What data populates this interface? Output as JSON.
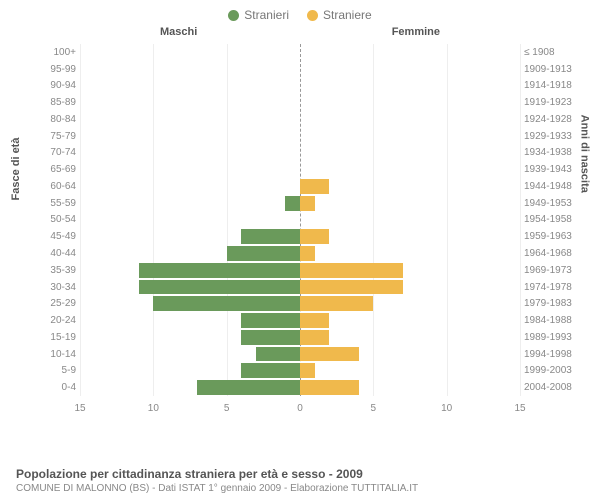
{
  "legend": {
    "male": {
      "label": "Stranieri",
      "color": "#6a9a5b"
    },
    "female": {
      "label": "Straniere",
      "color": "#f0b94c"
    }
  },
  "columns": {
    "left": "Maschi",
    "right": "Femmine"
  },
  "axes": {
    "left_title": "Fasce di età",
    "right_title": "Anni di nascita",
    "x_max": 15,
    "x_ticks": [
      15,
      10,
      5,
      0,
      5,
      10,
      15
    ]
  },
  "grid_color": "#eeeeee",
  "center_line_color": "#999999",
  "background_color": "#ffffff",
  "rows": [
    {
      "age": "100+",
      "birth": "≤ 1908",
      "m": 0,
      "f": 0
    },
    {
      "age": "95-99",
      "birth": "1909-1913",
      "m": 0,
      "f": 0
    },
    {
      "age": "90-94",
      "birth": "1914-1918",
      "m": 0,
      "f": 0
    },
    {
      "age": "85-89",
      "birth": "1919-1923",
      "m": 0,
      "f": 0
    },
    {
      "age": "80-84",
      "birth": "1924-1928",
      "m": 0,
      "f": 0
    },
    {
      "age": "75-79",
      "birth": "1929-1933",
      "m": 0,
      "f": 0
    },
    {
      "age": "70-74",
      "birth": "1934-1938",
      "m": 0,
      "f": 0
    },
    {
      "age": "65-69",
      "birth": "1939-1943",
      "m": 0,
      "f": 0
    },
    {
      "age": "60-64",
      "birth": "1944-1948",
      "m": 0,
      "f": 2
    },
    {
      "age": "55-59",
      "birth": "1949-1953",
      "m": 1,
      "f": 1
    },
    {
      "age": "50-54",
      "birth": "1954-1958",
      "m": 0,
      "f": 0
    },
    {
      "age": "45-49",
      "birth": "1959-1963",
      "m": 4,
      "f": 2
    },
    {
      "age": "40-44",
      "birth": "1964-1968",
      "m": 5,
      "f": 1
    },
    {
      "age": "35-39",
      "birth": "1969-1973",
      "m": 11,
      "f": 7
    },
    {
      "age": "30-34",
      "birth": "1974-1978",
      "m": 11,
      "f": 7
    },
    {
      "age": "25-29",
      "birth": "1979-1983",
      "m": 10,
      "f": 5
    },
    {
      "age": "20-24",
      "birth": "1984-1988",
      "m": 4,
      "f": 2
    },
    {
      "age": "15-19",
      "birth": "1989-1993",
      "m": 4,
      "f": 2
    },
    {
      "age": "10-14",
      "birth": "1994-1998",
      "m": 3,
      "f": 4
    },
    {
      "age": "5-9",
      "birth": "1999-2003",
      "m": 4,
      "f": 1
    },
    {
      "age": "0-4",
      "birth": "2004-2008",
      "m": 7,
      "f": 4
    }
  ],
  "footer": {
    "title": "Popolazione per cittadinanza straniera per età e sesso - 2009",
    "subtitle": "COMUNE DI MALONNO (BS) - Dati ISTAT 1° gennaio 2009 - Elaborazione TUTTITALIA.IT"
  }
}
